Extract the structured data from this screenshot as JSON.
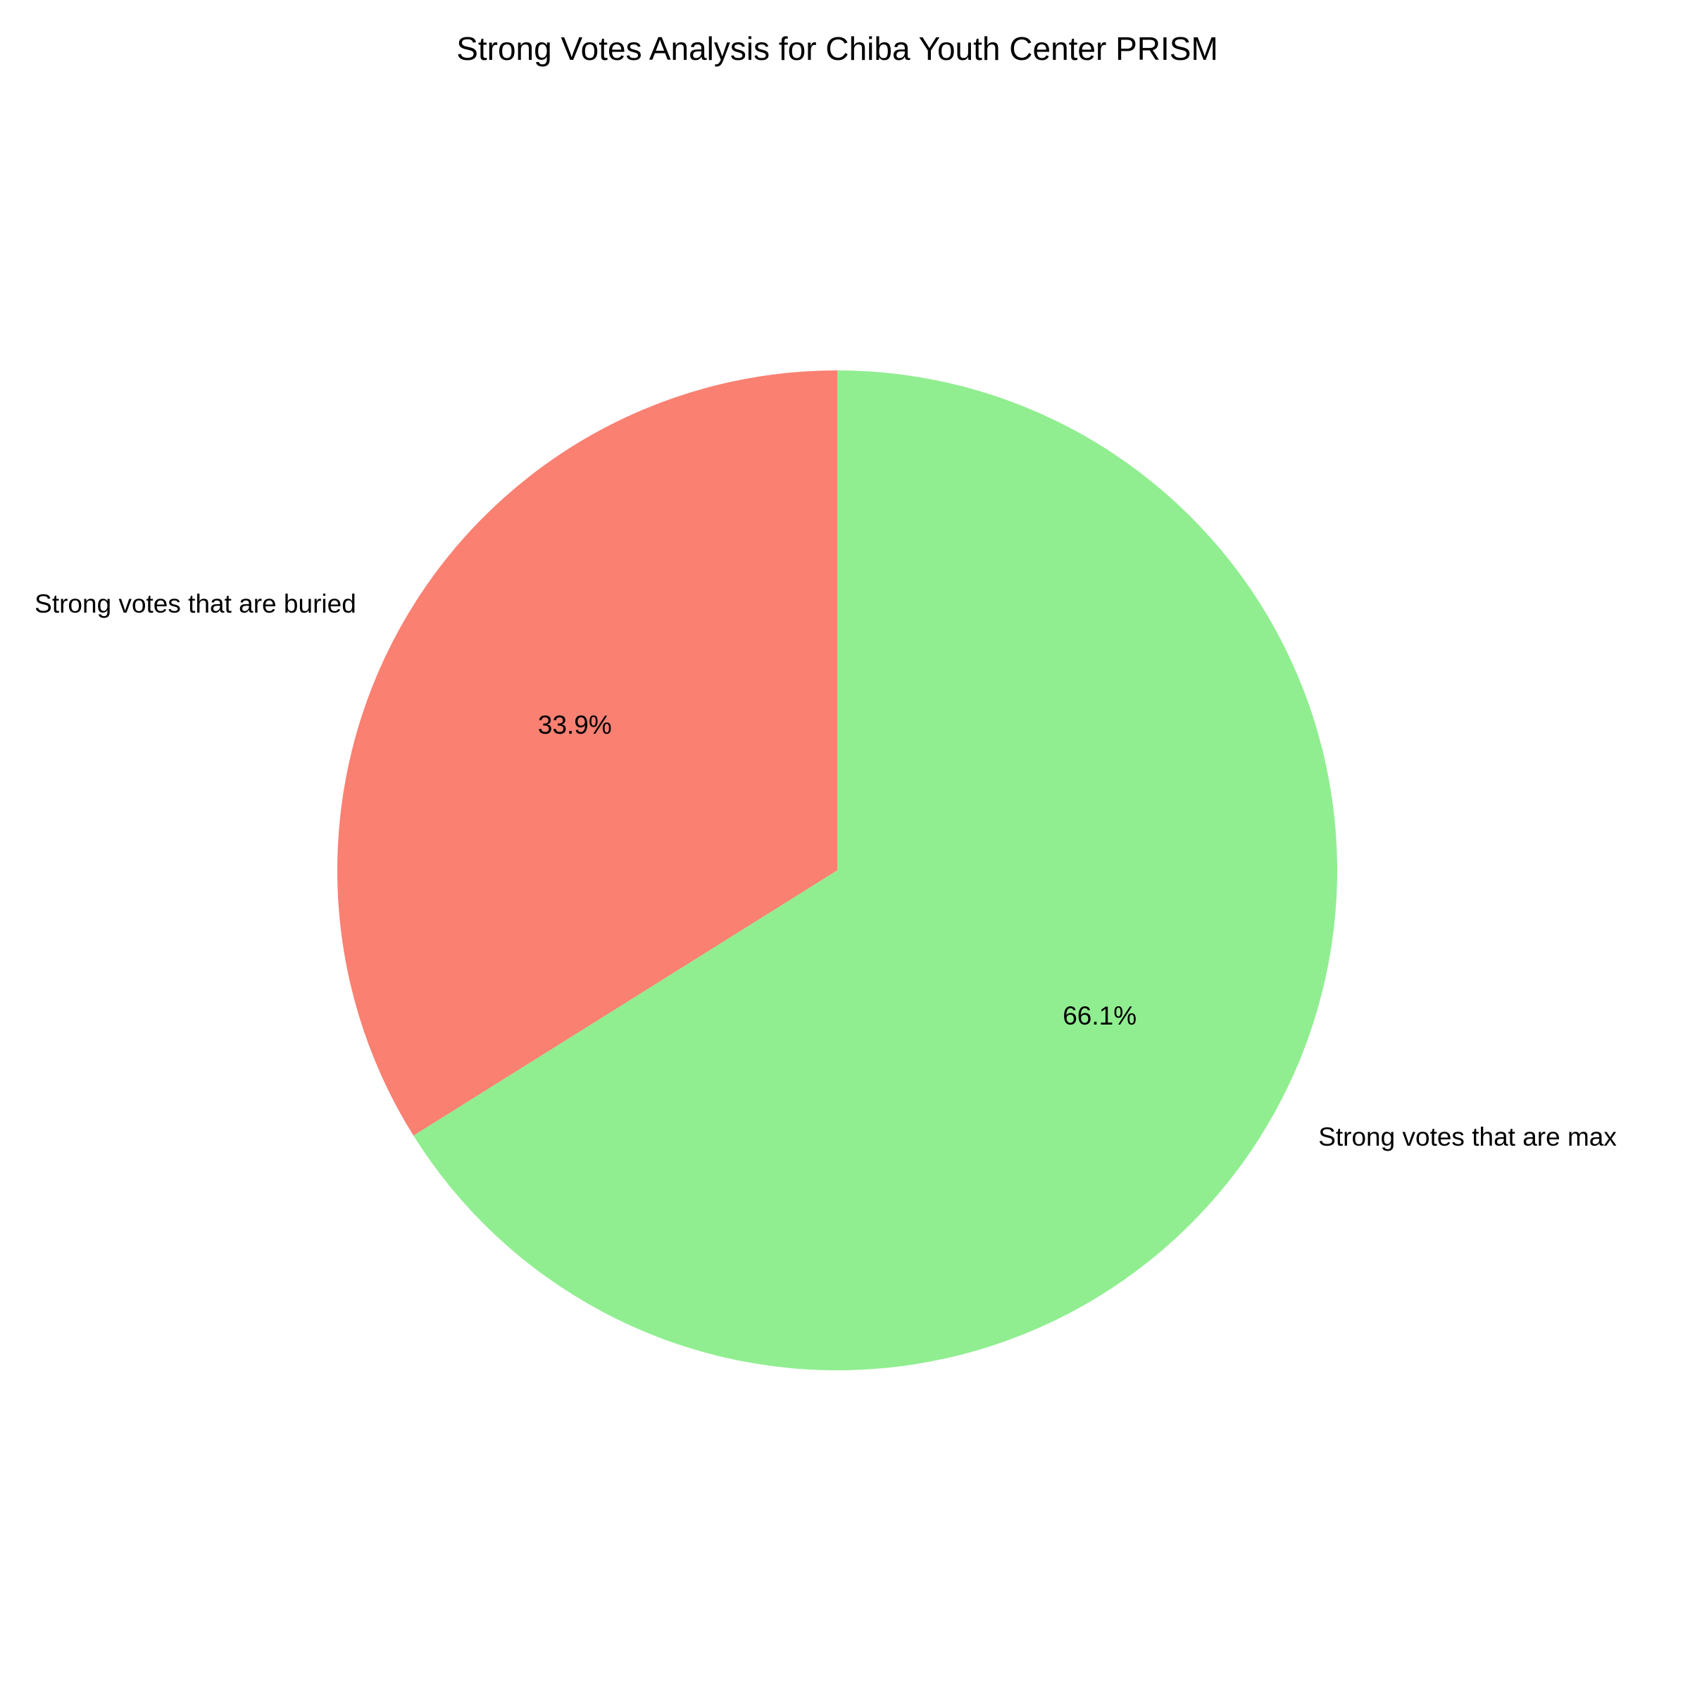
{
  "chart_data": {
    "type": "pie",
    "title": "Strong Votes Analysis for Chiba Youth Center PRISM",
    "slices": [
      {
        "label": "Strong votes that are max",
        "value": 66.1,
        "pct_label": "66.1%",
        "color": "#90ee90"
      },
      {
        "label": "Strong votes that are buried",
        "value": 33.9,
        "pct_label": "33.9%",
        "color": "#fa8072"
      }
    ],
    "start_angle_deg": 90,
    "direction": "clockwise"
  }
}
